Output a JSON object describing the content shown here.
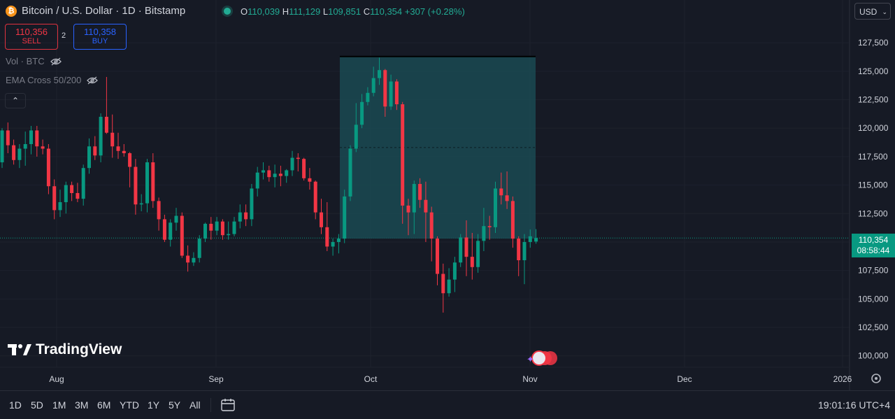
{
  "header": {
    "coin_glyph": "₿",
    "title": "Bitcoin / U.S. Dollar · 1D · Bitstamp",
    "o_key": "O",
    "o_val": "110,039",
    "h_key": "H",
    "h_val": "111,129",
    "l_key": "L",
    "l_val": "109,851",
    "c_key": "C",
    "c_val": "110,354",
    "change": "+307 (+0.28%)"
  },
  "trade": {
    "sell_price": "110,356",
    "sell_label": "SELL",
    "spread": "2",
    "buy_price": "110,358",
    "buy_label": "BUY"
  },
  "indicators": {
    "vol": "Vol · BTC",
    "ema": "EMA Cross 50/200",
    "collapse_glyph": "⌃"
  },
  "currency": {
    "label": "USD",
    "chevron": "⌄"
  },
  "price_axis": {
    "ticks": [
      "127,500",
      "125,000",
      "122,500",
      "120,000",
      "117,500",
      "115,000",
      "112,500",
      "110,000",
      "107,500",
      "105,000",
      "102,500",
      "100,000"
    ],
    "current_price": "110,354",
    "countdown": "08:58:44"
  },
  "time_axis": {
    "labels": [
      "Aug",
      "Sep",
      "Oct",
      "Nov",
      "Dec",
      "2026"
    ]
  },
  "branding": {
    "logo_text": "TradingView"
  },
  "bottom_bar": {
    "ranges": [
      "1D",
      "5D",
      "1M",
      "3M",
      "6M",
      "YTD",
      "1Y",
      "5Y",
      "All"
    ],
    "clock": "19:01:16 UTC+4"
  },
  "colors": {
    "up": "#089981",
    "down": "#f23645",
    "background": "#161a25",
    "grid": "#1e222d",
    "zone": "#1a4a52"
  },
  "chart_data": {
    "type": "candlestick",
    "title": "Bitcoin / U.S. Dollar · 1D · Bitstamp",
    "ylim": [
      99000,
      128800
    ],
    "x_labels": [
      "Aug",
      "Sep",
      "Oct",
      "Nov",
      "Dec",
      "2026"
    ],
    "candles": [
      [
        117000,
        120000,
        116500,
        119800
      ],
      [
        119800,
        120500,
        117800,
        118500
      ],
      [
        118500,
        119000,
        116800,
        117200
      ],
      [
        117200,
        118600,
        116500,
        118200
      ],
      [
        118200,
        119700,
        116700,
        118600
      ],
      [
        118600,
        120200,
        117700,
        119800
      ],
      [
        119800,
        120200,
        117500,
        118400
      ],
      [
        118400,
        119000,
        117700,
        118200
      ],
      [
        118200,
        118600,
        114200,
        114900
      ],
      [
        114900,
        115500,
        112000,
        112800
      ],
      [
        112800,
        114600,
        112200,
        113500
      ],
      [
        113500,
        115300,
        112500,
        115000
      ],
      [
        115000,
        115300,
        113600,
        114300
      ],
      [
        114300,
        115200,
        113500,
        113800
      ],
      [
        113800,
        116800,
        113200,
        116500
      ],
      [
        116500,
        119100,
        116000,
        118400
      ],
      [
        118400,
        119300,
        117200,
        117600
      ],
      [
        117600,
        121300,
        117000,
        121000
      ],
      [
        121000,
        124500,
        119500,
        119600
      ],
      [
        119600,
        121200,
        117400,
        118400
      ],
      [
        118400,
        119600,
        117300,
        118000
      ],
      [
        118000,
        118600,
        117500,
        117800
      ],
      [
        117800,
        117900,
        114800,
        116600
      ],
      [
        116600,
        117300,
        112400,
        113300
      ],
      [
        113300,
        114200,
        112700,
        113400
      ],
      [
        113400,
        117300,
        112600,
        117000
      ],
      [
        117000,
        117800,
        113000,
        113600
      ],
      [
        113600,
        113900,
        111000,
        112000
      ],
      [
        112000,
        112400,
        110000,
        110200
      ],
      [
        110200,
        112000,
        109600,
        111700
      ],
      [
        111700,
        113000,
        111000,
        112300
      ],
      [
        112300,
        112600,
        108600,
        108800
      ],
      [
        108800,
        109700,
        107400,
        108200
      ],
      [
        108200,
        109100,
        107900,
        108600
      ],
      [
        108600,
        110600,
        108200,
        110300
      ],
      [
        110300,
        111700,
        110000,
        111600
      ],
      [
        111600,
        112200,
        110200,
        111000
      ],
      [
        111000,
        112200,
        110600,
        111800
      ],
      [
        111800,
        112000,
        110200,
        110600
      ],
      [
        110600,
        111800,
        110200,
        110700
      ],
      [
        110700,
        112200,
        110500,
        111800
      ],
      [
        111800,
        113300,
        111200,
        112600
      ],
      [
        112600,
        113300,
        111400,
        112000
      ],
      [
        112000,
        115100,
        111400,
        114700
      ],
      [
        114700,
        116600,
        114000,
        116100
      ],
      [
        116100,
        117000,
        115500,
        116300
      ],
      [
        116300,
        116700,
        115300,
        115700
      ],
      [
        115700,
        116800,
        114800,
        116000
      ],
      [
        116000,
        116700,
        114900,
        115800
      ],
      [
        115800,
        116400,
        115200,
        116300
      ],
      [
        116300,
        118000,
        115800,
        117400
      ],
      [
        117400,
        117800,
        116200,
        117300
      ],
      [
        117300,
        117400,
        115400,
        115600
      ],
      [
        115600,
        116500,
        114600,
        115300
      ],
      [
        115300,
        115400,
        112000,
        112600
      ],
      [
        112600,
        113800,
        110700,
        111300
      ],
      [
        111300,
        113500,
        109200,
        109600
      ],
      [
        109600,
        110300,
        108800,
        110000
      ],
      [
        110000,
        110700,
        109000,
        110300
      ],
      [
        110300,
        114600,
        109900,
        114000
      ],
      [
        114000,
        118500,
        113600,
        118200
      ],
      [
        118200,
        122200,
        117900,
        120300
      ],
      [
        120300,
        123000,
        120000,
        122300
      ],
      [
        122300,
        123600,
        122000,
        123100
      ],
      [
        123100,
        125400,
        122800,
        124400
      ],
      [
        124400,
        126200,
        123800,
        125100
      ],
      [
        125100,
        125200,
        121000,
        121900
      ],
      [
        121900,
        124700,
        121600,
        124100
      ],
      [
        124100,
        124300,
        121600,
        122100
      ],
      [
        122100,
        122300,
        111600,
        113200
      ],
      [
        113200,
        113800,
        110600,
        112600
      ],
      [
        112600,
        115400,
        110700,
        115100
      ],
      [
        115100,
        115600,
        113000,
        113700
      ],
      [
        113700,
        115300,
        110000,
        112600
      ],
      [
        112600,
        113100,
        108300,
        110300
      ],
      [
        110300,
        110500,
        106200,
        107200
      ],
      [
        107200,
        108100,
        103800,
        105500
      ],
      [
        105500,
        107700,
        105200,
        106700
      ],
      [
        106700,
        108700,
        105600,
        108200
      ],
      [
        108200,
        110700,
        107800,
        110400
      ],
      [
        110400,
        111900,
        107000,
        108700
      ],
      [
        108700,
        110800,
        106700,
        107800
      ],
      [
        107800,
        110700,
        107300,
        110100
      ],
      [
        110100,
        113000,
        109200,
        111400
      ],
      [
        111400,
        112300,
        110200,
        111300
      ],
      [
        111300,
        115300,
        110800,
        114700
      ],
      [
        114700,
        116100,
        113300,
        114100
      ],
      [
        114100,
        116200,
        112900,
        113600
      ],
      [
        113600,
        114000,
        109500,
        110300
      ],
      [
        110300,
        110500,
        107000,
        108400
      ],
      [
        108400,
        110700,
        106300,
        110000
      ],
      [
        110000,
        111100,
        109500,
        110500
      ],
      [
        110039,
        111129,
        109851,
        110354
      ]
    ],
    "range_zone": {
      "top": 126300,
      "bottom": 110300,
      "mid_dashed": 118300
    },
    "last_price_line": 110354
  }
}
